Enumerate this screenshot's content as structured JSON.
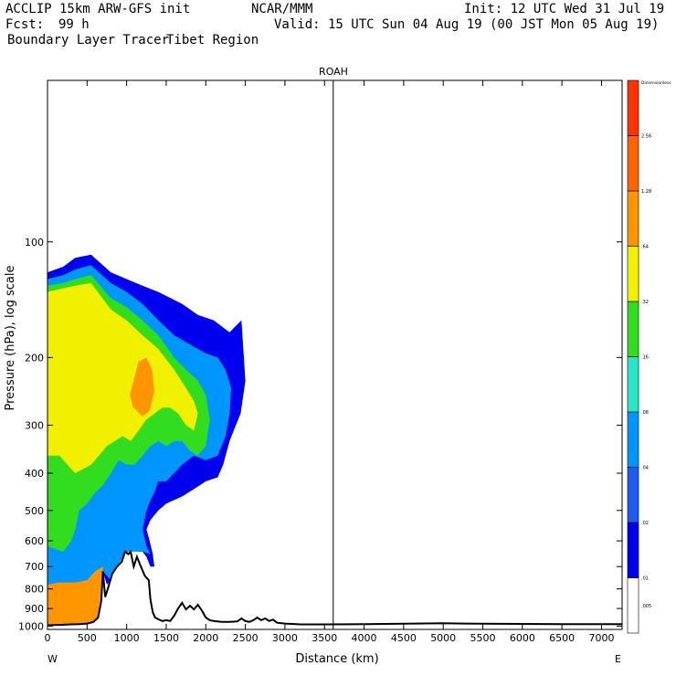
{
  "header": {
    "model": "ACCLIP 15km ARW-GFS init",
    "org": "NCAR/MMM",
    "init": "Init: 12 UTC Wed 31 Jul 19",
    "fcst_label": "Fcst:",
    "fcst_value": "99 h",
    "valid": "Valid: 15 UTC Sun 04 Aug 19 (00 JST Mon 05 Aug 19)",
    "product": "Boundary Layer Tracer",
    "region": "Tibet Region"
  },
  "colorbar": {
    "top_label": "Dimensionless",
    "labels": [
      ".005",
      ".01",
      ".02",
      ".04",
      ".08",
      ".16",
      ".32",
      ".64",
      "1.28",
      "2.56"
    ],
    "colors": [
      "#ffffff",
      "#0000ee",
      "#1e5cf0",
      "#0096ff",
      "#28e6c8",
      "#32dc1e",
      "#f0f000",
      "#ff9600",
      "#ff6400",
      "#ff3200"
    ]
  },
  "chart_data": {
    "type": "heatmap",
    "title": "ROAH",
    "xlabel": "Distance (km)",
    "ylabel": "Pressure (hPa), log scale",
    "x_ticks": [
      0,
      500,
      1000,
      1500,
      2000,
      2500,
      3000,
      3500,
      4000,
      4500,
      5000,
      5500,
      6000,
      6500,
      7000
    ],
    "x_tick_labels": [
      "0",
      "500",
      "1000",
      "1500",
      "2000",
      "2500",
      "3000",
      "3500",
      "4000",
      "4500",
      "5000",
      "5500",
      "6000",
      "6500",
      "7000"
    ],
    "xlim": [
      0,
      7260
    ],
    "y_ticks": [
      100,
      200,
      300,
      400,
      500,
      600,
      700,
      800,
      900,
      1000
    ],
    "y_tick_labels": [
      "100",
      "200",
      "300",
      "400",
      "500",
      "600",
      "700",
      "800",
      "900",
      "1000"
    ],
    "ylim_hpa": [
      1020,
      38
    ],
    "y_scale": "log",
    "x_end_labels": [
      "W",
      "E"
    ],
    "marker_line_km": 3610,
    "terrain": {
      "x_km": [
        0,
        100,
        200,
        300,
        400,
        500,
        580,
        640,
        680,
        700,
        730,
        770,
        820,
        880,
        940,
        980,
        1020,
        1050,
        1090,
        1130,
        1180,
        1230,
        1280,
        1300,
        1330,
        1360,
        1400,
        1450,
        1500,
        1550,
        1600,
        1650,
        1700,
        1750,
        1800,
        1850,
        1900,
        1950,
        2000,
        2050,
        2100,
        2200,
        2300,
        2400,
        2450,
        2500,
        2550,
        2600,
        2650,
        2700,
        2750,
        2800,
        2850,
        2900,
        3000,
        3200,
        3500,
        4000,
        4500,
        5000,
        5500,
        6000,
        6500,
        7000,
        7260
      ],
      "p_hpa": [
        995,
        993,
        992,
        990,
        988,
        985,
        975,
        950,
        860,
        720,
        840,
        790,
        730,
        700,
        680,
        640,
        650,
        640,
        700,
        660,
        700,
        740,
        760,
        850,
        920,
        950,
        960,
        970,
        965,
        970,
        940,
        900,
        870,
        905,
        885,
        905,
        880,
        910,
        950,
        965,
        970,
        975,
        975,
        972,
        955,
        970,
        975,
        965,
        950,
        965,
        955,
        970,
        962,
        980,
        985,
        990,
        990,
        988,
        986,
        983,
        986,
        987,
        988,
        988,
        988
      ]
    },
    "fields": [
      {
        "level": 0.01,
        "boundary": [
          [
            0,
            120
          ],
          [
            200,
            116
          ],
          [
            350,
            110
          ],
          [
            550,
            108
          ],
          [
            800,
            120
          ],
          [
            1000,
            125
          ],
          [
            1200,
            130
          ],
          [
            1400,
            135
          ],
          [
            1700,
            145
          ],
          [
            1900,
            155
          ],
          [
            2100,
            160
          ],
          [
            2300,
            172
          ],
          [
            2450,
            160
          ],
          [
            2500,
            230
          ],
          [
            2440,
            280
          ],
          [
            2380,
            300
          ],
          [
            2300,
            330
          ],
          [
            2220,
            380
          ],
          [
            2150,
            410
          ],
          [
            2000,
            420
          ],
          [
            1850,
            440
          ],
          [
            1700,
            460
          ],
          [
            1500,
            480
          ],
          [
            1400,
            500
          ],
          [
            1300,
            530
          ],
          [
            1250,
            560
          ],
          [
            1290,
            600
          ],
          [
            1330,
            650
          ],
          [
            1350,
            700
          ],
          [
            1300,
            700
          ],
          [
            1250,
            660
          ],
          [
            1200,
            640
          ],
          [
            1150,
            640
          ],
          [
            1050,
            630
          ],
          [
            950,
            660
          ],
          [
            900,
            690
          ],
          [
            850,
            720
          ],
          [
            800,
            760
          ],
          [
            750,
            780
          ],
          [
            700,
            720
          ],
          [
            680,
            860
          ],
          [
            640,
            950
          ],
          [
            580,
            975
          ],
          [
            500,
            985
          ],
          [
            300,
            990
          ],
          [
            150,
            993
          ],
          [
            0,
            995
          ]
        ]
      },
      {
        "level": 0.04,
        "boundary": [
          [
            0,
            125
          ],
          [
            200,
            122
          ],
          [
            350,
            118
          ],
          [
            550,
            115
          ],
          [
            800,
            128
          ],
          [
            1000,
            135
          ],
          [
            1200,
            145
          ],
          [
            1400,
            160
          ],
          [
            1600,
            175
          ],
          [
            1800,
            185
          ],
          [
            2000,
            195
          ],
          [
            2150,
            200
          ],
          [
            2250,
            215
          ],
          [
            2320,
            240
          ],
          [
            2300,
            280
          ],
          [
            2250,
            320
          ],
          [
            2150,
            360
          ],
          [
            2000,
            370
          ],
          [
            1850,
            360
          ],
          [
            1700,
            380
          ],
          [
            1600,
            400
          ],
          [
            1500,
            420
          ],
          [
            1400,
            420
          ],
          [
            1350,
            450
          ],
          [
            1300,
            470
          ],
          [
            1250,
            500
          ],
          [
            1200,
            560
          ],
          [
            1250,
            620
          ],
          [
            1300,
            650
          ],
          [
            1200,
            640
          ],
          [
            1100,
            640
          ],
          [
            1000,
            640
          ],
          [
            900,
            690
          ],
          [
            800,
            760
          ],
          [
            700,
            720
          ],
          [
            680,
            860
          ],
          [
            620,
            955
          ],
          [
            500,
            985
          ],
          [
            0,
            995
          ]
        ]
      },
      {
        "level": 0.16,
        "boundary": [
          [
            0,
            130
          ],
          [
            200,
            128
          ],
          [
            350,
            125
          ],
          [
            550,
            122
          ],
          [
            800,
            140
          ],
          [
            1000,
            148
          ],
          [
            1200,
            160
          ],
          [
            1400,
            175
          ],
          [
            1600,
            200
          ],
          [
            1750,
            215
          ],
          [
            1900,
            230
          ],
          [
            2000,
            250
          ],
          [
            2050,
            290
          ],
          [
            2000,
            340
          ],
          [
            1900,
            360
          ],
          [
            1800,
            350
          ],
          [
            1700,
            330
          ],
          [
            1600,
            330
          ],
          [
            1500,
            340
          ],
          [
            1400,
            330
          ],
          [
            1300,
            340
          ],
          [
            1200,
            360
          ],
          [
            1100,
            380
          ],
          [
            1000,
            380
          ],
          [
            900,
            370
          ],
          [
            800,
            400
          ],
          [
            700,
            430
          ],
          [
            600,
            450
          ],
          [
            500,
            480
          ],
          [
            400,
            500
          ],
          [
            350,
            560
          ],
          [
            300,
            600
          ],
          [
            200,
            640
          ],
          [
            0,
            620
          ]
        ]
      },
      {
        "level": 0.32,
        "boundary": [
          [
            0,
            135
          ],
          [
            200,
            132
          ],
          [
            350,
            130
          ],
          [
            550,
            128
          ],
          [
            800,
            150
          ],
          [
            1000,
            160
          ],
          [
            1200,
            175
          ],
          [
            1400,
            190
          ],
          [
            1600,
            215
          ],
          [
            1750,
            240
          ],
          [
            1850,
            260
          ],
          [
            1900,
            280
          ],
          [
            1850,
            310
          ],
          [
            1750,
            300
          ],
          [
            1650,
            280
          ],
          [
            1550,
            270
          ],
          [
            1450,
            270
          ],
          [
            1350,
            280
          ],
          [
            1250,
            290
          ],
          [
            1150,
            310
          ],
          [
            1050,
            330
          ],
          [
            950,
            320
          ],
          [
            850,
            330
          ],
          [
            750,
            340
          ],
          [
            650,
            360
          ],
          [
            550,
            380
          ],
          [
            450,
            390
          ],
          [
            350,
            400
          ],
          [
            250,
            380
          ],
          [
            150,
            360
          ],
          [
            0,
            360
          ]
        ]
      },
      {
        "level": 0.64,
        "boundary": [
          [
            1040,
            250
          ],
          [
            1150,
            205
          ],
          [
            1250,
            200
          ],
          [
            1320,
            215
          ],
          [
            1350,
            245
          ],
          [
            1290,
            275
          ],
          [
            1200,
            285
          ],
          [
            1130,
            275
          ],
          [
            1080,
            270
          ]
        ]
      },
      {
        "level": 0.64,
        "boundary": [
          [
            0,
            780
          ],
          [
            150,
            770
          ],
          [
            350,
            770
          ],
          [
            500,
            760
          ],
          [
            600,
            720
          ],
          [
            700,
            700
          ],
          [
            700,
            720
          ],
          [
            680,
            860
          ],
          [
            640,
            950
          ],
          [
            580,
            975
          ],
          [
            500,
            985
          ],
          [
            300,
            990
          ],
          [
            150,
            993
          ],
          [
            0,
            995
          ]
        ]
      }
    ]
  }
}
